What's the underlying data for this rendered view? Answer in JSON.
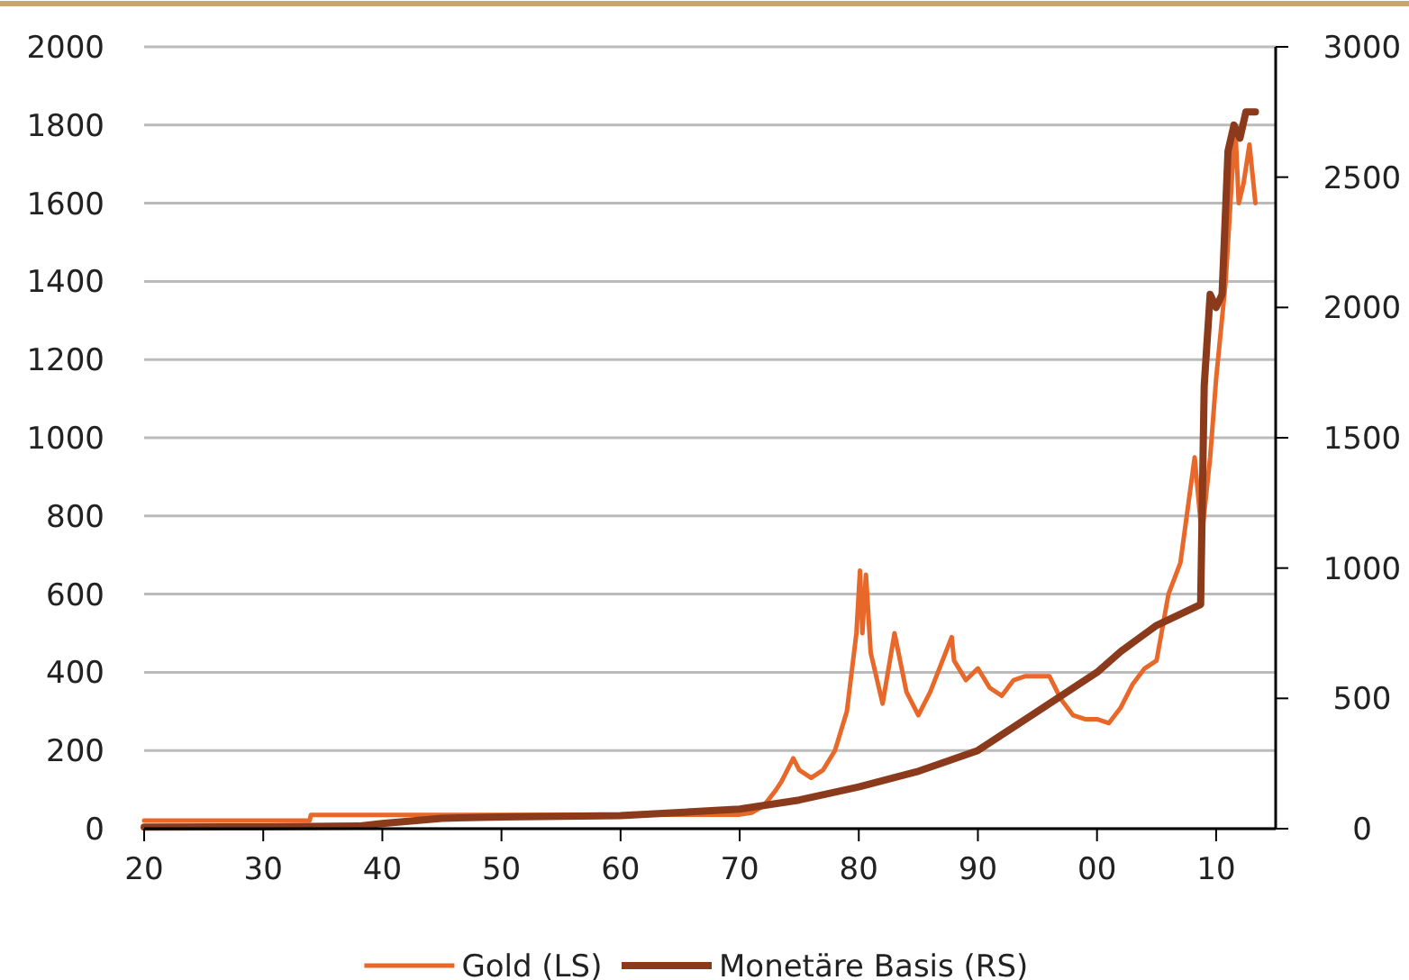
{
  "chart_data": {
    "type": "line",
    "xlim": [
      1920,
      2015
    ],
    "xticks": [
      {
        "value": 1920,
        "label": "20"
      },
      {
        "value": 1930,
        "label": "30"
      },
      {
        "value": 1940,
        "label": "40"
      },
      {
        "value": 1950,
        "label": "50"
      },
      {
        "value": 1960,
        "label": "60"
      },
      {
        "value": 1970,
        "label": "70"
      },
      {
        "value": 1980,
        "label": "80"
      },
      {
        "value": 1990,
        "label": "90"
      },
      {
        "value": 2000,
        "label": "00"
      },
      {
        "value": 2010,
        "label": "10"
      }
    ],
    "ylim": [
      0,
      2000
    ],
    "yticks": [
      0,
      200,
      400,
      600,
      800,
      1000,
      1200,
      1400,
      1600,
      1800,
      2000
    ],
    "y2lim": [
      0,
      3000
    ],
    "y2ticks": [
      0,
      500,
      1000,
      1500,
      2000,
      2500,
      3000
    ],
    "grid": "y",
    "legend": "bottom",
    "series": [
      {
        "name": "Gold (LS)",
        "color": "#e8682a",
        "x": [
          1920,
          1933.9,
          1934,
          1970,
          1971,
          1972,
          1973,
          1973.5,
          1974.5,
          1975,
          1976,
          1977,
          1978,
          1979,
          1979.8,
          1980.1,
          1980.3,
          1980.6,
          1981,
          1982,
          1983,
          1984,
          1985,
          1986,
          1987.8,
          1988,
          1989,
          1990,
          1991,
          1992,
          1993,
          1994,
          1996,
          1997,
          1998,
          1999,
          2000,
          2001,
          2002,
          2003,
          2004,
          2005,
          2006,
          2007,
          2008.2,
          2008.8,
          2009.5,
          2010,
          2010.8,
          2011.6,
          2011.9,
          2012.3,
          2012.8,
          2013.3
        ],
        "values": [
          21,
          21,
          35,
          36,
          41,
          58,
          97,
          120,
          180,
          150,
          130,
          150,
          200,
          300,
          500,
          660,
          500,
          650,
          450,
          320,
          500,
          350,
          290,
          350,
          490,
          430,
          380,
          410,
          360,
          340,
          380,
          390,
          390,
          330,
          290,
          280,
          280,
          270,
          310,
          370,
          410,
          430,
          600,
          680,
          950,
          750,
          950,
          1150,
          1400,
          1800,
          1600,
          1650,
          1750,
          1600
        ]
      },
      {
        "name": "Monetäre Basis (RS)",
        "color": "#8b3a1c",
        "axis": "y2",
        "x": [
          1920,
          1930,
          1938,
          1940,
          1945,
          1950,
          1960,
          1970,
          1975,
          1980,
          1985,
          1990,
          1995,
          2000,
          2002,
          2005,
          2008.7,
          2009,
          2009.5,
          2010,
          2010.5,
          2011,
          2011.5,
          2012,
          2012.5,
          2013.3
        ],
        "values": [
          6,
          7,
          10,
          20,
          40,
          45,
          50,
          75,
          110,
          160,
          220,
          300,
          450,
          600,
          680,
          780,
          860,
          1700,
          2050,
          2000,
          2050,
          2600,
          2700,
          2650,
          2750,
          2750
        ]
      }
    ]
  }
}
